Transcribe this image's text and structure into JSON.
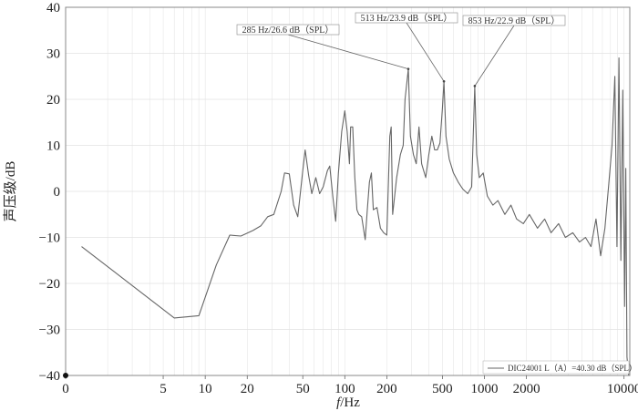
{
  "chart_data": {
    "type": "line",
    "title": "",
    "xlabel_italic": "f",
    "xlabel_rest": "/Hz",
    "ylabel": "声压级/dB",
    "x_scale": "log",
    "xlim": [
      1,
      11000
    ],
    "ylim": [
      -40,
      40
    ],
    "x_ticks": [
      {
        "value": 1,
        "label": "0"
      },
      {
        "value": 5,
        "label": "5"
      },
      {
        "value": 10,
        "label": "10"
      },
      {
        "value": 20,
        "label": "20"
      },
      {
        "value": 50,
        "label": "50"
      },
      {
        "value": 100,
        "label": "100"
      },
      {
        "value": 200,
        "label": "200"
      },
      {
        "value": 500,
        "label": "500"
      },
      {
        "value": 1000,
        "label": "1000"
      },
      {
        "value": 2000,
        "label": "2000"
      },
      {
        "value": 10000,
        "label": "10000"
      }
    ],
    "y_ticks": [
      40,
      30,
      20,
      10,
      0,
      -10,
      -20,
      -30,
      -40
    ],
    "grid": true,
    "legend_position": "bottom-right",
    "series": [
      {
        "name": "DIC24001 L（A）=40.30 dB（SPL）",
        "color": "#666666",
        "points": [
          [
            1.3,
            -12
          ],
          [
            6,
            -27.5
          ],
          [
            9,
            -27
          ],
          [
            12,
            -16
          ],
          [
            15,
            -9.5
          ],
          [
            18,
            -9.7
          ],
          [
            22,
            -8.5
          ],
          [
            25,
            -7.5
          ],
          [
            28,
            -5.5
          ],
          [
            31,
            -5
          ],
          [
            35,
            0
          ],
          [
            37,
            4
          ],
          [
            40,
            3.8
          ],
          [
            43,
            -3
          ],
          [
            46,
            -5.5
          ],
          [
            50,
            4.5
          ],
          [
            52,
            9
          ],
          [
            55,
            3.5
          ],
          [
            58,
            -0.5
          ],
          [
            62,
            3
          ],
          [
            66,
            -0.5
          ],
          [
            70,
            1
          ],
          [
            75,
            4.5
          ],
          [
            78,
            5.5
          ],
          [
            82,
            -1
          ],
          [
            86,
            -6.5
          ],
          [
            90,
            4
          ],
          [
            95,
            13
          ],
          [
            100,
            17.5
          ],
          [
            104,
            13
          ],
          [
            108,
            6
          ],
          [
            110,
            14
          ],
          [
            114,
            14
          ],
          [
            118,
            3
          ],
          [
            122,
            -4
          ],
          [
            126,
            -5
          ],
          [
            132,
            -5.5
          ],
          [
            140,
            -10.5
          ],
          [
            145,
            -4
          ],
          [
            150,
            2
          ],
          [
            155,
            4
          ],
          [
            160,
            -4
          ],
          [
            170,
            -3.5
          ],
          [
            180,
            -8
          ],
          [
            190,
            -9
          ],
          [
            200,
            -9.5
          ],
          [
            210,
            12
          ],
          [
            215,
            14
          ],
          [
            220,
            -5
          ],
          [
            235,
            3
          ],
          [
            250,
            8
          ],
          [
            262,
            10
          ],
          [
            270,
            20
          ],
          [
            285,
            26.6
          ],
          [
            295,
            12
          ],
          [
            310,
            8
          ],
          [
            325,
            6
          ],
          [
            340,
            14
          ],
          [
            355,
            6
          ],
          [
            380,
            3
          ],
          [
            400,
            8
          ],
          [
            420,
            12
          ],
          [
            440,
            9
          ],
          [
            460,
            9
          ],
          [
            480,
            10.5
          ],
          [
            500,
            18
          ],
          [
            513,
            23.9
          ],
          [
            530,
            12
          ],
          [
            560,
            7
          ],
          [
            600,
            4
          ],
          [
            650,
            2
          ],
          [
            700,
            0.5
          ],
          [
            760,
            -0.5
          ],
          [
            810,
            1
          ],
          [
            853,
            22.9
          ],
          [
            880,
            8
          ],
          [
            920,
            3
          ],
          [
            980,
            4
          ],
          [
            1050,
            -1
          ],
          [
            1150,
            -3
          ],
          [
            1250,
            -2
          ],
          [
            1400,
            -5
          ],
          [
            1550,
            -3
          ],
          [
            1700,
            -6
          ],
          [
            1900,
            -7
          ],
          [
            2100,
            -5
          ],
          [
            2400,
            -8
          ],
          [
            2700,
            -6
          ],
          [
            3000,
            -9
          ],
          [
            3400,
            -7
          ],
          [
            3800,
            -10
          ],
          [
            4300,
            -9
          ],
          [
            4800,
            -11
          ],
          [
            5300,
            -10
          ],
          [
            5800,
            -12
          ],
          [
            6300,
            -6
          ],
          [
            6800,
            -14
          ],
          [
            7300,
            -8
          ],
          [
            7800,
            2
          ],
          [
            8200,
            10
          ],
          [
            8600,
            25
          ],
          [
            8900,
            -12
          ],
          [
            9200,
            29
          ],
          [
            9500,
            -15
          ],
          [
            9800,
            22
          ],
          [
            10100,
            -25
          ],
          [
            10300,
            5
          ],
          [
            10500,
            -36
          ],
          [
            10800,
            -40
          ]
        ]
      }
    ],
    "annotations": [
      {
        "x": 285,
        "y": 26.6,
        "label": "285 Hz/26.6 dB（SPL）"
      },
      {
        "x": 513,
        "y": 23.9,
        "label": "513 Hz/23.9 dB（SPL）"
      },
      {
        "x": 853,
        "y": 22.9,
        "label": "853 Hz/22.9 dB（SPL）"
      }
    ]
  }
}
